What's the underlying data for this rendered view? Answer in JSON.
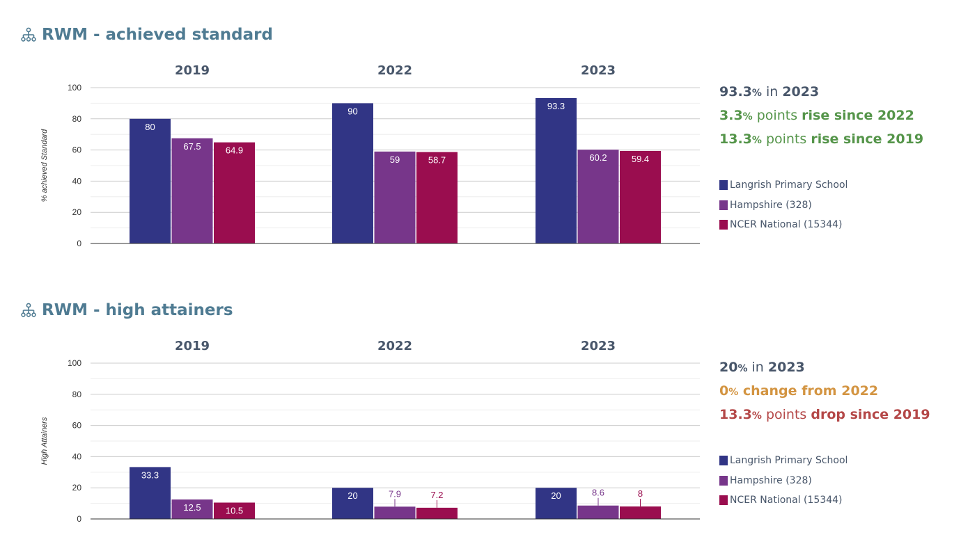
{
  "colors": {
    "school": "#313585",
    "county": "#77368a",
    "national": "#9a0d4f",
    "title": "#4f7b92",
    "text": "#48566a",
    "rise": "#55954a",
    "neutral": "#d39441",
    "drop": "#b44747"
  },
  "panels": [
    {
      "title": "RWM - achieved standard",
      "icon": "hierarchy-icon",
      "summary": [
        {
          "tone": "text",
          "parts": [
            {
              "t": "93.3",
              "k": "num"
            },
            {
              "t": "%",
              "k": "pct"
            },
            {
              "t": " in ",
              "k": "plain"
            },
            {
              "t": "2023",
              "k": "strong"
            }
          ]
        },
        {
          "tone": "rise",
          "parts": [
            {
              "t": "3.3",
              "k": "num"
            },
            {
              "t": "%",
              "k": "pct"
            },
            {
              "t": " points ",
              "k": "plain"
            },
            {
              "t": "rise since 2022",
              "k": "strong"
            }
          ]
        },
        {
          "tone": "rise",
          "parts": [
            {
              "t": "13.3",
              "k": "num"
            },
            {
              "t": "%",
              "k": "pct"
            },
            {
              "t": " points ",
              "k": "plain"
            },
            {
              "t": "rise since 2019",
              "k": "strong"
            }
          ]
        }
      ],
      "legend": [
        "Langrish Primary School",
        "Hampshire (328)",
        "NCER National (15344)"
      ]
    },
    {
      "title": "RWM - high attainers",
      "icon": "hierarchy-icon",
      "summary": [
        {
          "tone": "text",
          "parts": [
            {
              "t": "20",
              "k": "num"
            },
            {
              "t": "%",
              "k": "pct"
            },
            {
              "t": " in ",
              "k": "plain"
            },
            {
              "t": "2023",
              "k": "strong"
            }
          ]
        },
        {
          "tone": "neutral",
          "parts": [
            {
              "t": "0",
              "k": "num"
            },
            {
              "t": "%",
              "k": "pct"
            },
            {
              "t": " change from 2022",
              "k": "strong"
            }
          ]
        },
        {
          "tone": "drop",
          "parts": [
            {
              "t": "13.3",
              "k": "num"
            },
            {
              "t": "%",
              "k": "pct"
            },
            {
              "t": " points ",
              "k": "plain"
            },
            {
              "t": "drop since 2019",
              "k": "strong"
            }
          ]
        }
      ],
      "legend": [
        "Langrish Primary School",
        "Hampshire (328)",
        "NCER National (15344)"
      ]
    }
  ],
  "chart_data": [
    {
      "type": "bar",
      "title": "RWM - achieved standard",
      "ylabel": "% achieved Standard",
      "ylim": [
        0,
        100
      ],
      "yticks": [
        "0",
        "20",
        "40",
        "60",
        "80",
        "100"
      ],
      "grid": true,
      "legend_position": "right",
      "categories": [
        "2019",
        "2022",
        "2023"
      ],
      "series": [
        {
          "name": "Langrish Primary School",
          "values": [
            80,
            90,
            93.3
          ],
          "labels": [
            "80",
            "90",
            "93.3"
          ]
        },
        {
          "name": "Hampshire (328)",
          "values": [
            67.5,
            59,
            60.2
          ],
          "labels": [
            "67.5",
            "59",
            "60.2"
          ]
        },
        {
          "name": "NCER National (15344)",
          "values": [
            64.9,
            58.7,
            59.4
          ],
          "labels": [
            "64.9",
            "58.7",
            "59.4"
          ]
        }
      ]
    },
    {
      "type": "bar",
      "title": "RWM - high attainers",
      "ylabel": "High Attainers",
      "ylim": [
        0,
        100
      ],
      "yticks": [
        "0",
        "20",
        "40",
        "60",
        "80",
        "100"
      ],
      "grid": true,
      "legend_position": "right",
      "categories": [
        "2019",
        "2022",
        "2023"
      ],
      "series": [
        {
          "name": "Langrish Primary School",
          "values": [
            33.3,
            20,
            20
          ],
          "labels": [
            "33.3",
            "20",
            "20"
          ]
        },
        {
          "name": "Hampshire (328)",
          "values": [
            12.5,
            7.9,
            8.6
          ],
          "labels": [
            "12.5",
            "7.9",
            "8.6"
          ]
        },
        {
          "name": "NCER National (15344)",
          "values": [
            10.5,
            7.2,
            8
          ],
          "labels": [
            "10.5",
            "7.2",
            "8"
          ]
        }
      ]
    }
  ]
}
